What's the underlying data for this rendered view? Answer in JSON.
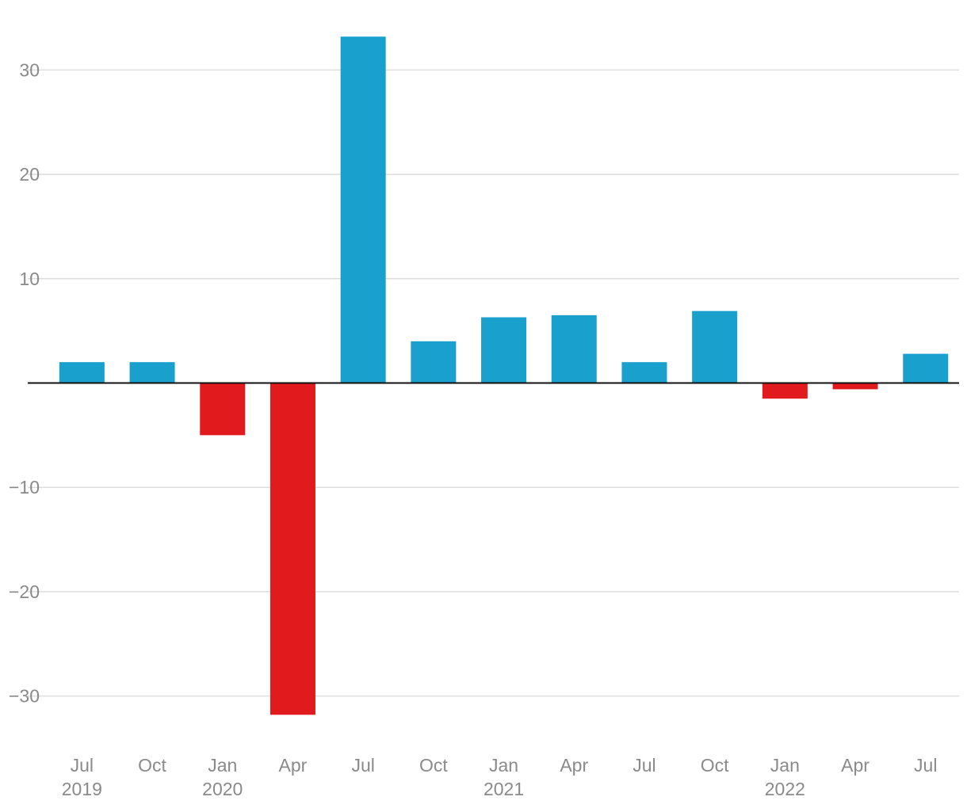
{
  "chart_data": {
    "type": "bar",
    "title": "",
    "xlabel": "",
    "ylabel": "",
    "ylim": [
      -35,
      33
    ],
    "yticks": [
      30,
      20,
      10,
      -10,
      -20,
      -30
    ],
    "y_tick_labels": [
      "30",
      "20",
      "10",
      "−10",
      "−20",
      "−30"
    ],
    "grid": true,
    "legend": "none",
    "categories": [
      "Jul 2019",
      "Oct 2019",
      "Jan 2020",
      "Apr 2020",
      "Jul 2020",
      "Oct 2020",
      "Jan 2021",
      "Apr 2021",
      "Jul 2021",
      "Oct 2021",
      "Jan 2022",
      "Apr 2022",
      "Jul 2022"
    ],
    "x_tick_labels": [
      {
        "month": "Jul",
        "year": "2019"
      },
      {
        "month": "Oct",
        "year": ""
      },
      {
        "month": "Jan",
        "year": "2020"
      },
      {
        "month": "Apr",
        "year": ""
      },
      {
        "month": "Jul",
        "year": ""
      },
      {
        "month": "Oct",
        "year": ""
      },
      {
        "month": "Jan",
        "year": "2021"
      },
      {
        "month": "Apr",
        "year": ""
      },
      {
        "month": "Jul",
        "year": ""
      },
      {
        "month": "Oct",
        "year": ""
      },
      {
        "month": "Jan",
        "year": "2022"
      },
      {
        "month": "Apr",
        "year": ""
      },
      {
        "month": "Jul",
        "year": ""
      }
    ],
    "values": [
      2.0,
      2.0,
      -5.0,
      -31.8,
      33.2,
      4.0,
      6.3,
      6.5,
      2.0,
      6.9,
      -1.5,
      -0.6,
      2.8
    ],
    "colors": {
      "positive": "#19a0cc",
      "negative": "#e11b1d"
    }
  }
}
